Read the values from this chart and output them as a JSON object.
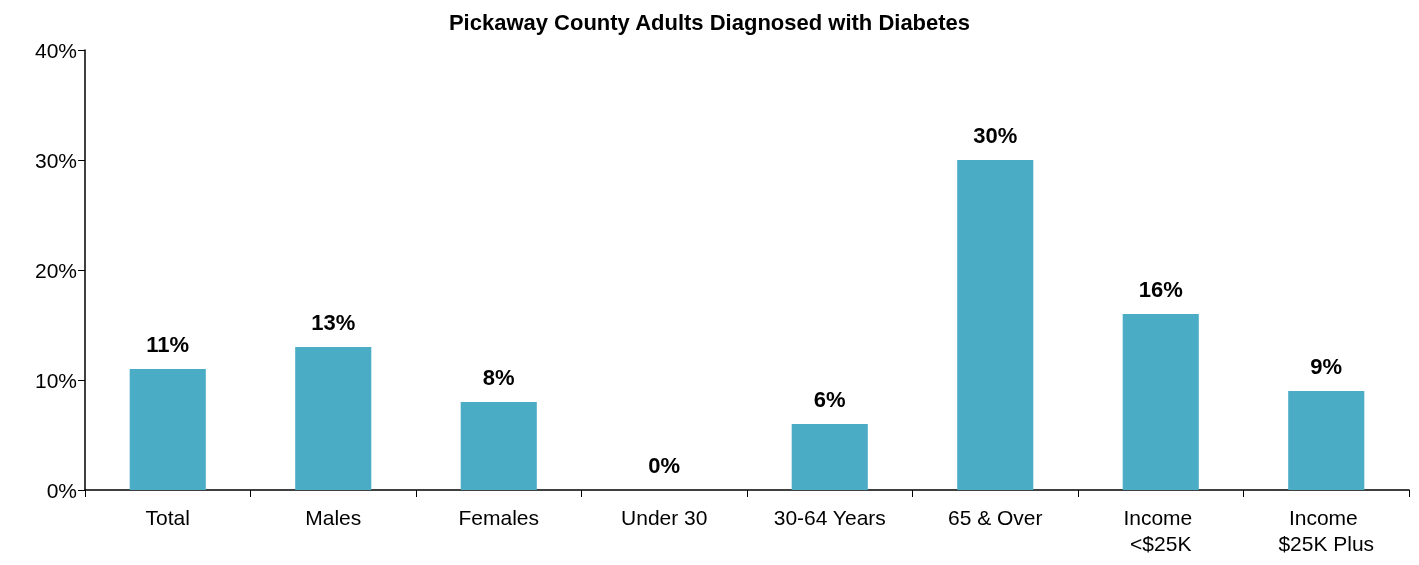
{
  "chart_data": {
    "type": "bar",
    "title": "Pickaway County Adults Diagnosed with Diabetes",
    "categories": [
      "Total",
      "Males",
      "Females",
      "Under 30",
      "30-64 Years",
      "65 & Over",
      "Income <$25K",
      "Income $25K Plus"
    ],
    "values": [
      11,
      13,
      8,
      0,
      6,
      30,
      16,
      9
    ],
    "value_labels": [
      "11%",
      "13%",
      "8%",
      "0%",
      "6%",
      "30%",
      "16%",
      "9%"
    ],
    "color": "#4bacc6",
    "ylim": [
      0,
      40
    ],
    "yticks": [
      {
        "value": 0,
        "label": "0%"
      },
      {
        "value": 10,
        "label": "10%"
      },
      {
        "value": 20,
        "label": "20%"
      },
      {
        "value": 30,
        "label": "30%"
      },
      {
        "value": 40,
        "label": "40%"
      }
    ],
    "grid": false
  }
}
